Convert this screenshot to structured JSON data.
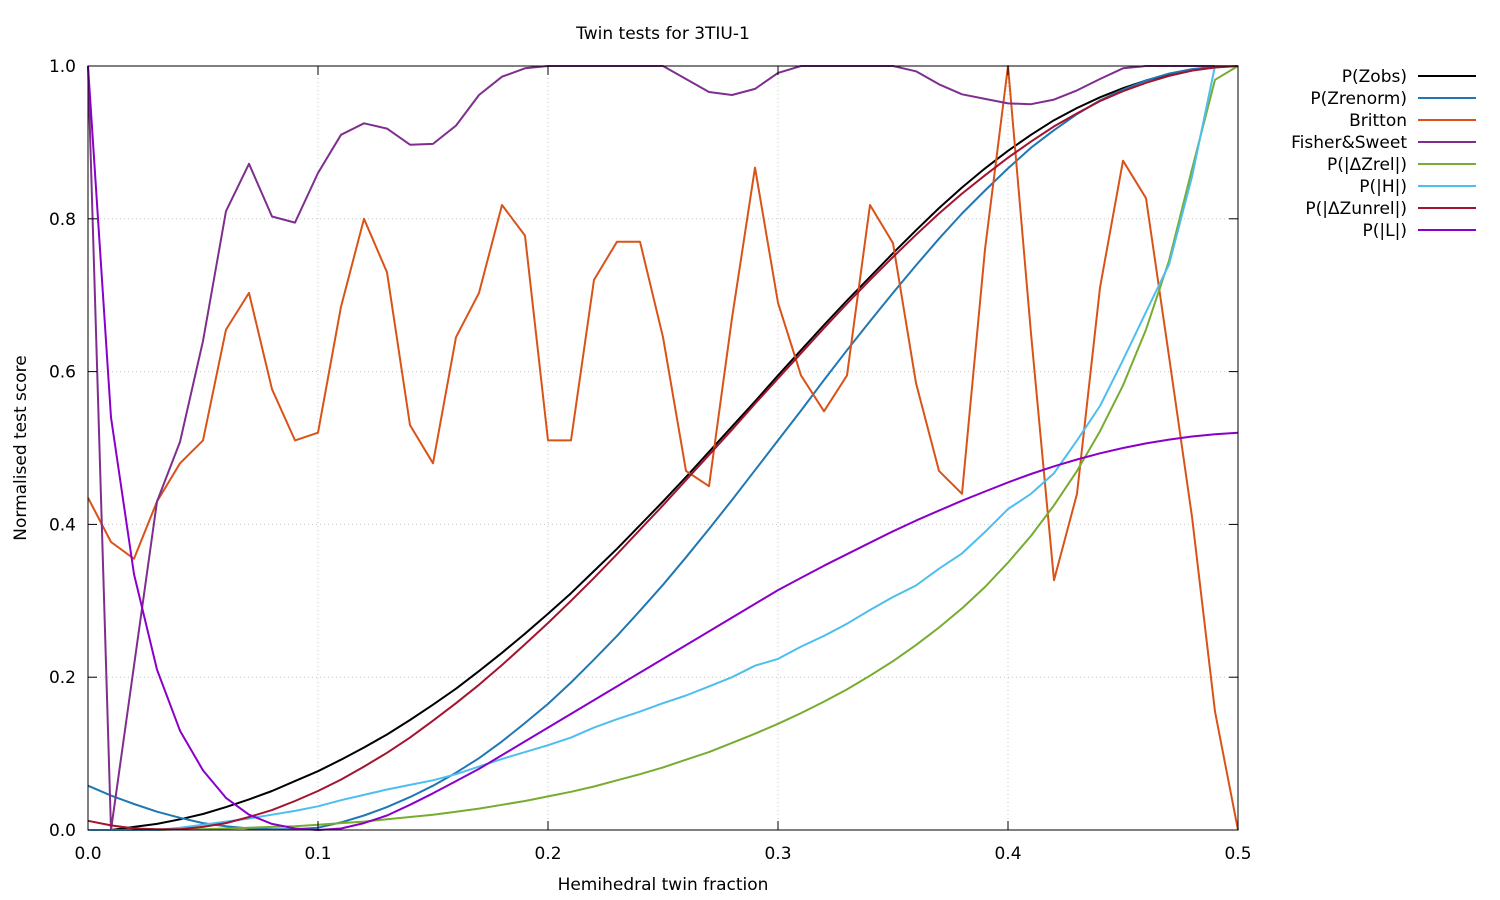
{
  "chart_data": {
    "type": "line",
    "title": "Twin tests for 3TIU-1",
    "xlabel": "Hemihedral twin fraction",
    "ylabel": "Normalised test score",
    "xlim": [
      0,
      0.5
    ],
    "ylim": [
      0,
      1
    ],
    "xticks": [
      0.0,
      0.1,
      0.2,
      0.3,
      0.4,
      0.5
    ],
    "xtick_labels": [
      "0.0",
      "0.1",
      "0.2",
      "0.3",
      "0.4",
      "0.5"
    ],
    "yticks": [
      0.0,
      0.2,
      0.4,
      0.6,
      0.8,
      1.0
    ],
    "ytick_labels": [
      "0.0",
      "0.2",
      "0.4",
      "0.6",
      "0.8",
      "1.0"
    ],
    "grid": true,
    "legend_position": "outside-top-right",
    "x": [
      0.0,
      0.01,
      0.02,
      0.03,
      0.04,
      0.05,
      0.06,
      0.07,
      0.08,
      0.09,
      0.1,
      0.11,
      0.12,
      0.13,
      0.14,
      0.15,
      0.16,
      0.17,
      0.18,
      0.19,
      0.2,
      0.21,
      0.22,
      0.23,
      0.24,
      0.25,
      0.26,
      0.27,
      0.28,
      0.29,
      0.3,
      0.31,
      0.32,
      0.33,
      0.34,
      0.35,
      0.36,
      0.37,
      0.38,
      0.39,
      0.4,
      0.41,
      0.42,
      0.43,
      0.44,
      0.45,
      0.46,
      0.47,
      0.48,
      0.49,
      0.5
    ],
    "series": [
      {
        "name": "P(Zobs)",
        "color": "#000000",
        "values": [
          0.0,
          0.0,
          0.004,
          0.008,
          0.014,
          0.021,
          0.03,
          0.04,
          0.051,
          0.064,
          0.077,
          0.092,
          0.108,
          0.125,
          0.144,
          0.164,
          0.185,
          0.208,
          0.232,
          0.257,
          0.283,
          0.31,
          0.339,
          0.368,
          0.399,
          0.43,
          0.462,
          0.495,
          0.528,
          0.561,
          0.595,
          0.628,
          0.661,
          0.693,
          0.724,
          0.755,
          0.785,
          0.814,
          0.841,
          0.866,
          0.889,
          0.91,
          0.929,
          0.945,
          0.959,
          0.971,
          0.981,
          0.989,
          0.995,
          0.999,
          1.0
        ]
      },
      {
        "name": "P(Zrenorm)",
        "color": "#1f77b4",
        "values": [
          0.058,
          0.045,
          0.034,
          0.024,
          0.016,
          0.009,
          0.005,
          0.002,
          0.001,
          0.001,
          0.003,
          0.01,
          0.019,
          0.03,
          0.043,
          0.058,
          0.075,
          0.094,
          0.116,
          0.14,
          0.165,
          0.193,
          0.223,
          0.254,
          0.287,
          0.321,
          0.357,
          0.394,
          0.432,
          0.471,
          0.51,
          0.549,
          0.589,
          0.628,
          0.666,
          0.703,
          0.739,
          0.774,
          0.807,
          0.837,
          0.866,
          0.893,
          0.916,
          0.937,
          0.955,
          0.969,
          0.981,
          0.99,
          0.996,
          0.999,
          1.0
        ]
      },
      {
        "name": "Britton",
        "color": "#d95319",
        "values": [
          0.435,
          0.377,
          0.355,
          0.43,
          0.48,
          0.51,
          0.655,
          0.703,
          0.577,
          0.51,
          0.52,
          0.685,
          0.8,
          0.73,
          0.53,
          0.48,
          0.645,
          0.703,
          0.818,
          0.778,
          0.51,
          0.51,
          0.72,
          0.77,
          0.77,
          0.645,
          0.47,
          0.45,
          0.67,
          0.867,
          0.69,
          0.595,
          0.548,
          0.595,
          0.818,
          0.768,
          0.585,
          0.47,
          0.44,
          0.76,
          1.0,
          0.65,
          0.327,
          0.44,
          0.71,
          0.876,
          0.827,
          0.62,
          0.41,
          0.155,
          0.0
        ]
      },
      {
        "name": "Fisher&Sweet",
        "color": "#7e2f8e",
        "values": [
          1.0,
          0.0,
          0.215,
          0.43,
          0.508,
          0.64,
          0.81,
          0.872,
          0.803,
          0.795,
          0.86,
          0.91,
          0.925,
          0.918,
          0.897,
          0.898,
          0.922,
          0.962,
          0.986,
          0.997,
          1.0,
          1.0,
          1.0,
          1.0,
          1.0,
          1.0,
          0.983,
          0.966,
          0.962,
          0.97,
          0.991,
          1.0,
          1.0,
          1.0,
          1.0,
          1.0,
          0.993,
          0.976,
          0.963,
          0.957,
          0.951,
          0.95,
          0.956,
          0.968,
          0.983,
          0.997,
          1.0,
          1.0,
          1.0,
          1.0,
          1.0
        ]
      },
      {
        "name": "P(|ΔZrel|)",
        "color": "#77ac30",
        "values": [
          0.0,
          0.0,
          0.0,
          0.0,
          0.001,
          0.001,
          0.002,
          0.003,
          0.004,
          0.005,
          0.007,
          0.009,
          0.011,
          0.014,
          0.017,
          0.02,
          0.024,
          0.028,
          0.033,
          0.038,
          0.044,
          0.05,
          0.057,
          0.065,
          0.073,
          0.082,
          0.092,
          0.102,
          0.114,
          0.126,
          0.139,
          0.153,
          0.168,
          0.184,
          0.202,
          0.221,
          0.242,
          0.265,
          0.29,
          0.318,
          0.35,
          0.385,
          0.425,
          0.47,
          0.522,
          0.582,
          0.655,
          0.745,
          0.865,
          0.982,
          1.0
        ]
      },
      {
        "name": "P(|H|)",
        "color": "#4dbeee",
        "values": [
          0.0,
          0.0,
          0.0,
          0.0,
          0.003,
          0.007,
          0.011,
          0.015,
          0.02,
          0.025,
          0.031,
          0.039,
          0.046,
          0.053,
          0.059,
          0.065,
          0.073,
          0.083,
          0.093,
          0.102,
          0.111,
          0.121,
          0.134,
          0.145,
          0.155,
          0.166,
          0.176,
          0.188,
          0.2,
          0.215,
          0.224,
          0.24,
          0.254,
          0.27,
          0.288,
          0.305,
          0.32,
          0.342,
          0.362,
          0.39,
          0.42,
          0.44,
          0.467,
          0.51,
          0.555,
          0.615,
          0.678,
          0.74,
          0.855,
          1.0,
          1.0
        ]
      },
      {
        "name": "P(|ΔZunrel|)",
        "color": "#a2142f",
        "values": [
          0.012,
          0.006,
          0.002,
          0.001,
          0.001,
          0.004,
          0.009,
          0.017,
          0.026,
          0.038,
          0.051,
          0.066,
          0.083,
          0.101,
          0.121,
          0.143,
          0.166,
          0.19,
          0.216,
          0.243,
          0.271,
          0.3,
          0.33,
          0.361,
          0.393,
          0.425,
          0.458,
          0.491,
          0.524,
          0.558,
          0.591,
          0.624,
          0.657,
          0.689,
          0.72,
          0.75,
          0.779,
          0.807,
          0.833,
          0.857,
          0.88,
          0.901,
          0.921,
          0.938,
          0.954,
          0.967,
          0.978,
          0.987,
          0.994,
          0.998,
          1.0
        ]
      },
      {
        "name": "P(|L|)",
        "color": "#8b00c9",
        "values": [
          1.0,
          0.54,
          0.335,
          0.21,
          0.13,
          0.078,
          0.042,
          0.02,
          0.008,
          0.002,
          0.0,
          0.002,
          0.009,
          0.019,
          0.033,
          0.048,
          0.064,
          0.08,
          0.098,
          0.116,
          0.134,
          0.152,
          0.17,
          0.188,
          0.206,
          0.224,
          0.242,
          0.26,
          0.278,
          0.296,
          0.314,
          0.33,
          0.346,
          0.361,
          0.376,
          0.391,
          0.405,
          0.418,
          0.431,
          0.443,
          0.455,
          0.466,
          0.476,
          0.485,
          0.493,
          0.5,
          0.506,
          0.511,
          0.515,
          0.518,
          0.52
        ]
      }
    ]
  }
}
